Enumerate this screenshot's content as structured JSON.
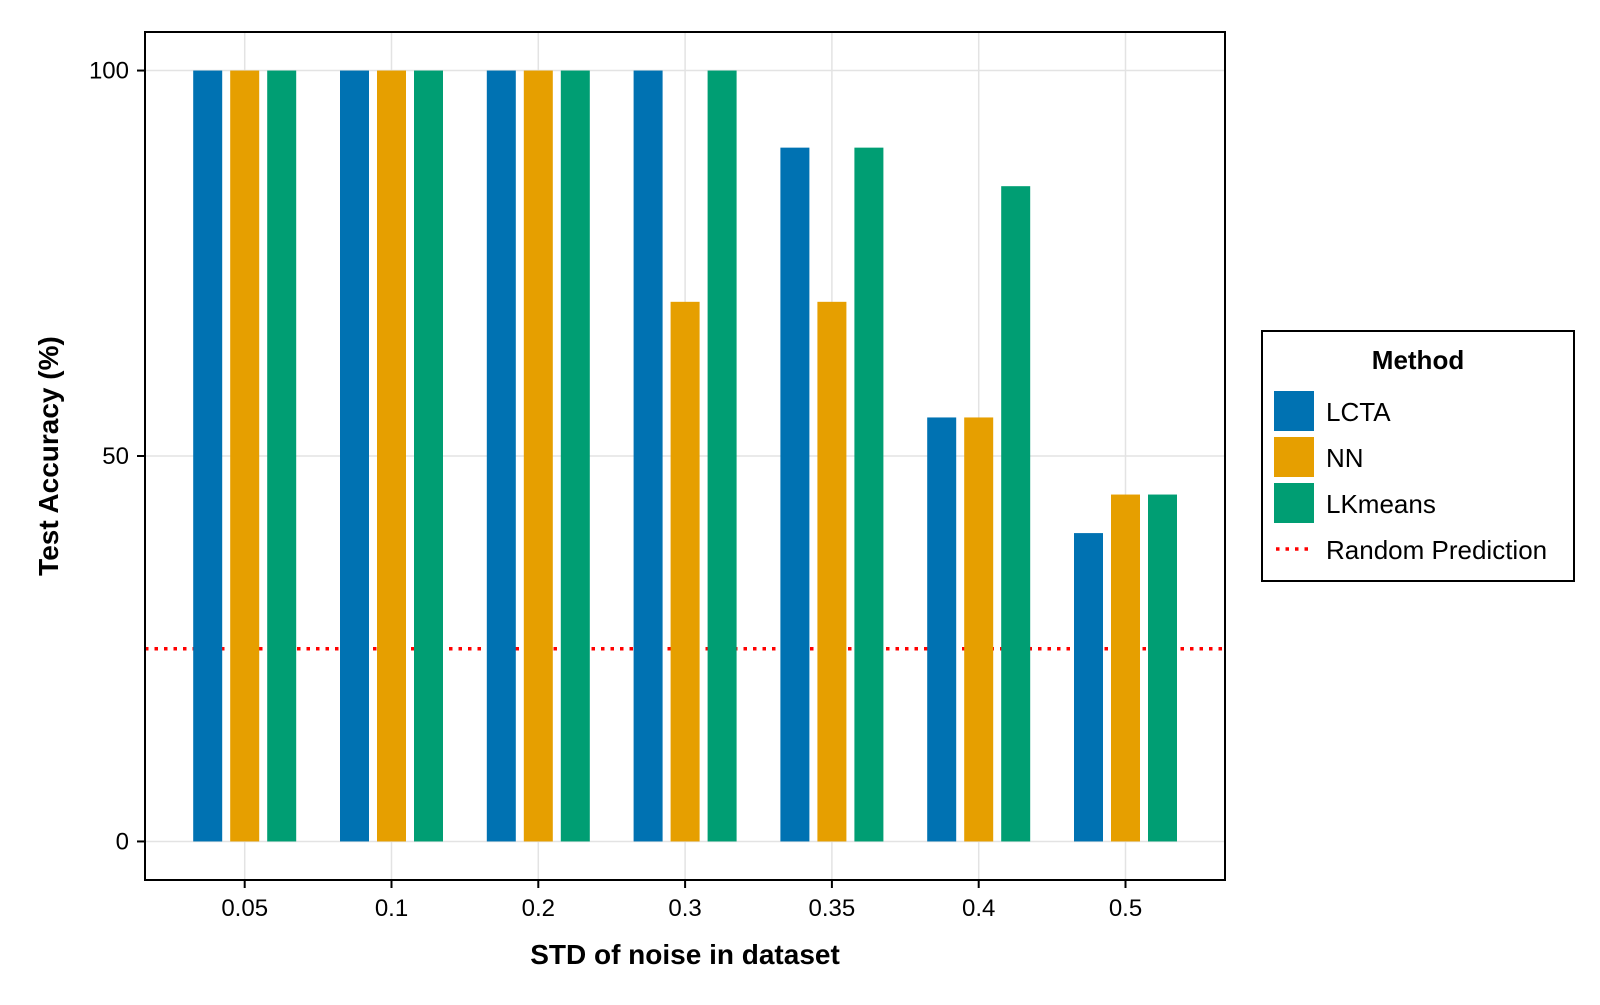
{
  "chart_data": {
    "type": "bar",
    "title": "",
    "xlabel": "STD of noise in dataset",
    "ylabel": "Test Accuracy (%)",
    "categories": [
      "0.05",
      "0.1",
      "0.2",
      "0.3",
      "0.35",
      "0.4",
      "0.5"
    ],
    "ylim": [
      -5,
      105
    ],
    "yticks": [
      0,
      50,
      100
    ],
    "grid": true,
    "legend": {
      "title": "Method",
      "position": "right"
    },
    "series": [
      {
        "name": "LCTA",
        "color": "#0072b2",
        "values": [
          100,
          100,
          100,
          100,
          90,
          55,
          40
        ]
      },
      {
        "name": "NN",
        "color": "#e69f00",
        "values": [
          100,
          100,
          100,
          70,
          70,
          55,
          45
        ]
      },
      {
        "name": "LKmeans",
        "color": "#009e73",
        "values": [
          100,
          100,
          100,
          100,
          90,
          85,
          45
        ]
      }
    ],
    "reference_line": {
      "name": "Random Prediction",
      "value": 25,
      "color": "#ff0000",
      "style": "dotted"
    }
  }
}
